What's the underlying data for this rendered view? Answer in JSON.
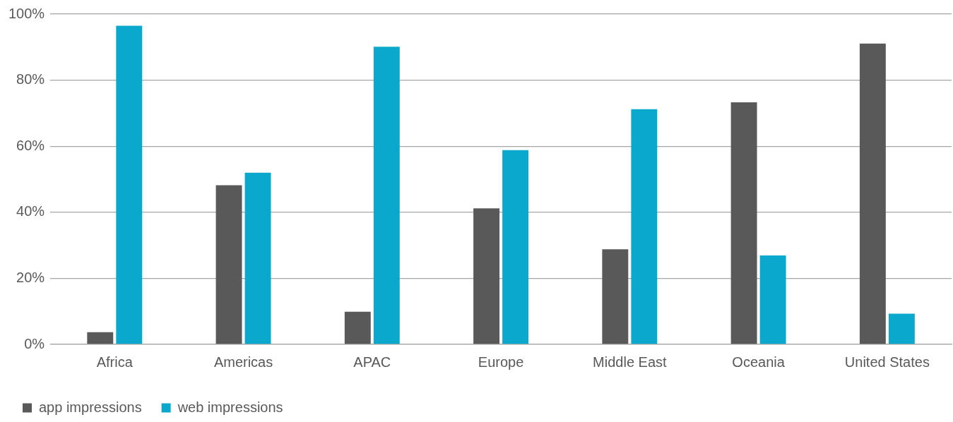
{
  "chart_data": {
    "type": "bar",
    "categories": [
      "Africa",
      "Americas",
      "APAC",
      "Europe",
      "Middle East",
      "Oceania",
      "United States"
    ],
    "series": [
      {
        "name": "app impressions",
        "color": "#595959",
        "values": [
          3.7,
          48.2,
          9.9,
          41.2,
          28.8,
          73.3,
          91.1
        ]
      },
      {
        "name": "web impressions",
        "color": "#0aa8cc",
        "values": [
          96.5,
          52,
          90.1,
          58.8,
          71.2,
          26.9,
          9.3
        ]
      }
    ],
    "ylim": [
      0,
      100
    ],
    "yticks": [
      {
        "value": 0,
        "label": "0%"
      },
      {
        "value": 20,
        "label": "20%"
      },
      {
        "value": 40,
        "label": "40%"
      },
      {
        "value": 60,
        "label": "60%"
      },
      {
        "value": 80,
        "label": "80%"
      },
      {
        "value": 100,
        "label": "100%"
      }
    ],
    "grid": "y",
    "legend": "bottom left"
  }
}
